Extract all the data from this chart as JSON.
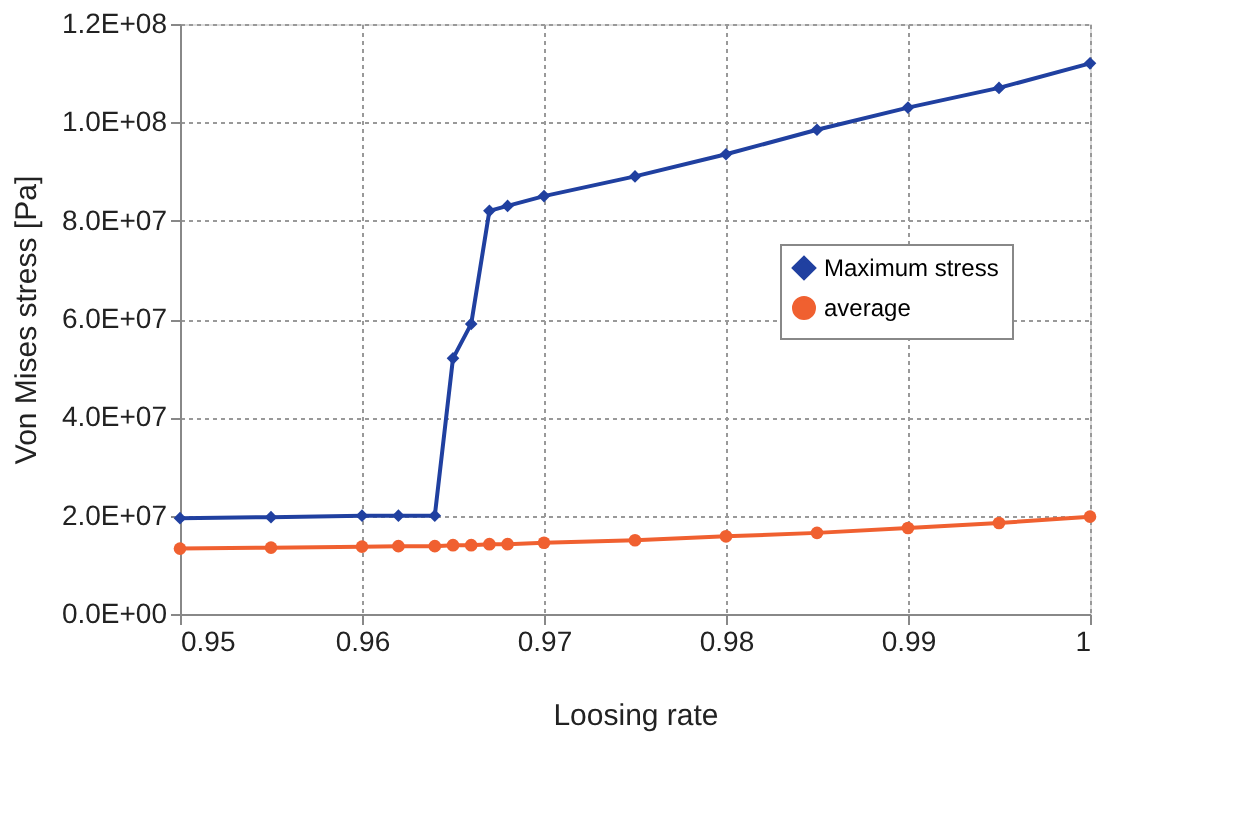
{
  "chart_data": {
    "type": "line",
    "xlabel": "Loosing rate",
    "ylabel": "Von Mises stress [Pa]",
    "x": [
      0.95,
      0.955,
      0.96,
      0.962,
      0.964,
      0.965,
      0.966,
      0.967,
      0.968,
      0.97,
      0.975,
      0.98,
      0.985,
      0.99,
      0.995,
      1.0
    ],
    "series": [
      {
        "name": "Maximum stress",
        "color": "#2040a0",
        "marker": "diamond",
        "values": [
          19500000,
          19700000,
          20000000,
          20000000,
          20000000,
          52000000,
          59000000,
          82000000,
          83000000,
          85000000,
          89000000,
          93500000,
          98500000,
          103000000,
          107000000,
          112000000
        ]
      },
      {
        "name": "average",
        "color": "#f06030",
        "marker": "circle",
        "values": [
          13300000,
          13500000,
          13700000,
          13800000,
          13800000,
          14000000,
          14000000,
          14200000,
          14200000,
          14500000,
          15000000,
          15800000,
          16500000,
          17500000,
          18500000,
          19800000
        ]
      }
    ],
    "xlim": [
      0.95,
      1.0
    ],
    "xticks": [
      0.95,
      0.96,
      0.97,
      0.98,
      0.99,
      {
        "value": 1.0,
        "label": "1"
      }
    ],
    "ylim": [
      0,
      120000000
    ],
    "yticks": [
      {
        "value": 0,
        "label": "0.0E+00"
      },
      {
        "value": 20000000,
        "label": "2.0E+07"
      },
      {
        "value": 40000000,
        "label": "4.0E+07"
      },
      {
        "value": 60000000,
        "label": "6.0E+07"
      },
      {
        "value": 80000000,
        "label": "8.0E+07"
      },
      {
        "value": 100000000,
        "label": "1.0E+08"
      },
      {
        "value": 120000000,
        "label": "1.2E+08"
      }
    ],
    "grid": true,
    "legend": "right",
    "line_style": "solid"
  }
}
